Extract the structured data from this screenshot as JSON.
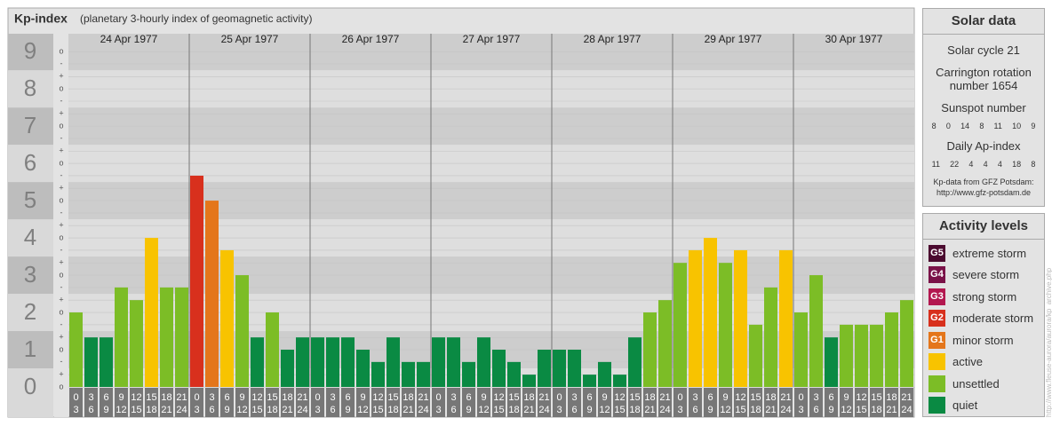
{
  "header": {
    "title": "Kp-index",
    "subtitle": "(planetary 3-hourly index of geomagnetic activity)"
  },
  "chart_data": {
    "type": "bar",
    "days": [
      "24 Apr 1977",
      "25 Apr 1977",
      "26 Apr 1977",
      "27 Apr 1977",
      "28 Apr 1977",
      "29 Apr 1977",
      "30 Apr 1977"
    ],
    "hours": [
      [
        "0",
        "3"
      ],
      [
        "3",
        "6"
      ],
      [
        "6",
        "9"
      ],
      [
        "9",
        "12"
      ],
      [
        "12",
        "15"
      ],
      [
        "15",
        "18"
      ],
      [
        "18",
        "21"
      ],
      [
        "21",
        "24"
      ]
    ],
    "values": [
      [
        2,
        1.33,
        1.33,
        2.67,
        2.33,
        4,
        2.67,
        2.67
      ],
      [
        5.67,
        5,
        3.67,
        3,
        1.33,
        2,
        1,
        1.33
      ],
      [
        1.33,
        1.33,
        1.33,
        1,
        0.67,
        1.33,
        0.67,
        0.67
      ],
      [
        1.33,
        1.33,
        0.67,
        1.33,
        1,
        0.67,
        0.33,
        1
      ],
      [
        1,
        1,
        0.33,
        0.67,
        0.33,
        1.33,
        2,
        2.33
      ],
      [
        3.33,
        3.67,
        4,
        3.33,
        3.67,
        1.67,
        2.67,
        3.67
      ],
      [
        2,
        3,
        1.33,
        1.67,
        1.67,
        1.67,
        2,
        2.33
      ]
    ],
    "colors": [
      [
        "#7cbd26",
        "#0a8a43",
        "#0a8a43",
        "#7cbd26",
        "#7cbd26",
        "#f8c300",
        "#7cbd26",
        "#7cbd26"
      ],
      [
        "#d8301d",
        "#e4761b",
        "#f8c300",
        "#7cbd26",
        "#0a8a43",
        "#7cbd26",
        "#0a8a43",
        "#0a8a43"
      ],
      [
        "#0a8a43",
        "#0a8a43",
        "#0a8a43",
        "#0a8a43",
        "#0a8a43",
        "#0a8a43",
        "#0a8a43",
        "#0a8a43"
      ],
      [
        "#0a8a43",
        "#0a8a43",
        "#0a8a43",
        "#0a8a43",
        "#0a8a43",
        "#0a8a43",
        "#0a8a43",
        "#0a8a43"
      ],
      [
        "#0a8a43",
        "#0a8a43",
        "#0a8a43",
        "#0a8a43",
        "#0a8a43",
        "#0a8a43",
        "#7cbd26",
        "#7cbd26"
      ],
      [
        "#7cbd26",
        "#f8c300",
        "#f8c300",
        "#7cbd26",
        "#f8c300",
        "#7cbd26",
        "#7cbd26",
        "#f8c300"
      ],
      [
        "#7cbd26",
        "#7cbd26",
        "#0a8a43",
        "#7cbd26",
        "#7cbd26",
        "#7cbd26",
        "#7cbd26",
        "#7cbd26"
      ]
    ],
    "ylim": [
      0,
      9.48
    ],
    "yticks": [
      0,
      1,
      2,
      3,
      4,
      5,
      6,
      7,
      8,
      9
    ],
    "minor_yticks": [
      {
        "value": 0,
        "label": "o"
      },
      {
        "value": 0.33,
        "label": "+"
      },
      {
        "value": 0.67,
        "label": "-"
      },
      {
        "value": 1,
        "label": "o"
      },
      {
        "value": 1.33,
        "label": "+"
      },
      {
        "value": 1.67,
        "label": "-"
      },
      {
        "value": 2,
        "label": "o"
      },
      {
        "value": 2.33,
        "label": "+"
      },
      {
        "value": 2.67,
        "label": "-"
      },
      {
        "value": 3,
        "label": "o"
      },
      {
        "value": 3.33,
        "label": "+"
      },
      {
        "value": 3.67,
        "label": "-"
      },
      {
        "value": 4,
        "label": "o"
      },
      {
        "value": 4.33,
        "label": "+"
      },
      {
        "value": 4.67,
        "label": "-"
      },
      {
        "value": 5,
        "label": "o"
      },
      {
        "value": 5.33,
        "label": "+"
      },
      {
        "value": 5.67,
        "label": "-"
      },
      {
        "value": 6,
        "label": "o"
      },
      {
        "value": 6.33,
        "label": "+"
      },
      {
        "value": 6.67,
        "label": "-"
      },
      {
        "value": 7,
        "label": "o"
      },
      {
        "value": 7.33,
        "label": "+"
      },
      {
        "value": 7.67,
        "label": "-"
      },
      {
        "value": 8,
        "label": "o"
      },
      {
        "value": 8.33,
        "label": "+"
      },
      {
        "value": 8.67,
        "label": "-"
      },
      {
        "value": 9,
        "label": "o"
      }
    ],
    "grid": true,
    "legend": {
      "title": "Activity levels",
      "items": [
        {
          "badge": "G5",
          "name": "extreme storm",
          "color": "#4b0a2f"
        },
        {
          "badge": "G4",
          "name": "severe storm",
          "color": "#7a1248"
        },
        {
          "badge": "G3",
          "name": "strong storm",
          "color": "#b3174f"
        },
        {
          "badge": "G2",
          "name": "moderate storm",
          "color": "#d8301d"
        },
        {
          "badge": "G1",
          "name": "minor storm",
          "color": "#e4761b"
        },
        {
          "name": "active",
          "color": "#f8c300"
        },
        {
          "name": "unsettled",
          "color": "#7cbd26"
        },
        {
          "name": "quiet",
          "color": "#0a8a43"
        }
      ]
    }
  },
  "solar_data": {
    "title": "Solar data",
    "cycle": "Solar cycle 21",
    "rotation": "Carrington rotation number 1654",
    "sunspot_title": "Sunspot number",
    "sunspot": [
      8,
      0,
      14,
      8,
      11,
      10,
      9
    ],
    "ap_title": "Daily Ap-index",
    "ap": [
      11,
      22,
      4,
      4,
      4,
      18,
      8
    ],
    "source": "Kp-data from GFZ Potsdam:",
    "url": "http://www.gfz-potsdam.de"
  },
  "watermark": "http://www.fleuse-aurora/aurora/kp_archive.php"
}
